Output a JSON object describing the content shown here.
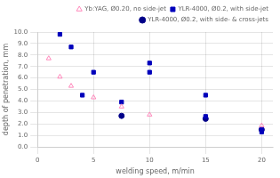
{
  "chart_data": {
    "type": "scatter",
    "xlabel": "welding speed, m/min",
    "ylabel": "depth of penetration, mm",
    "series": [
      {
        "name": "Yb:YAG, Ø0.20, no side-jet",
        "color": "#ff88bb",
        "marker": "triangle-open",
        "x": [
          1,
          2,
          3,
          5,
          7.5,
          10,
          20
        ],
        "values": [
          7.7,
          6.1,
          5.3,
          4.3,
          3.5,
          2.8,
          1.85
        ]
      },
      {
        "name": "YLR-4000, Ø0.2, with side-jet",
        "color": "#0000bb",
        "marker": "square",
        "x": [
          2,
          3,
          4,
          5,
          7.5,
          10,
          10,
          15,
          15,
          20,
          20
        ],
        "values": [
          9.8,
          8.7,
          4.5,
          6.5,
          3.9,
          7.3,
          6.5,
          4.5,
          2.65,
          1.55,
          1.3
        ]
      },
      {
        "name": "YLR-4000, Ø0.2, with side- & cross-jets",
        "color": "#000088",
        "marker": "circle",
        "x": [
          7.5,
          15,
          20
        ],
        "values": [
          2.7,
          2.45,
          1.5
        ]
      }
    ],
    "xlim": [
      0,
      21
    ],
    "ylim": [
      0.0,
      10.0
    ],
    "xticks": [
      0,
      5,
      10,
      15,
      20
    ],
    "yticks": [
      {
        "value": 0.0,
        "label": "0.0"
      },
      {
        "value": 1.0,
        "label": "1.0"
      },
      {
        "value": 2.0,
        "label": "2.0"
      },
      {
        "value": 3.0,
        "label": "3.0"
      },
      {
        "value": 4.0,
        "label": "4.0"
      },
      {
        "value": 5.0,
        "label": "5.0"
      },
      {
        "value": 6.0,
        "label": "6.0"
      },
      {
        "value": 7.0,
        "label": "7.0"
      },
      {
        "value": 8.0,
        "label": "8.0"
      },
      {
        "value": 9.0,
        "label": "9.0"
      },
      {
        "value": 10.0,
        "label": "10.0"
      }
    ],
    "grid": true,
    "legend": "upper right"
  }
}
